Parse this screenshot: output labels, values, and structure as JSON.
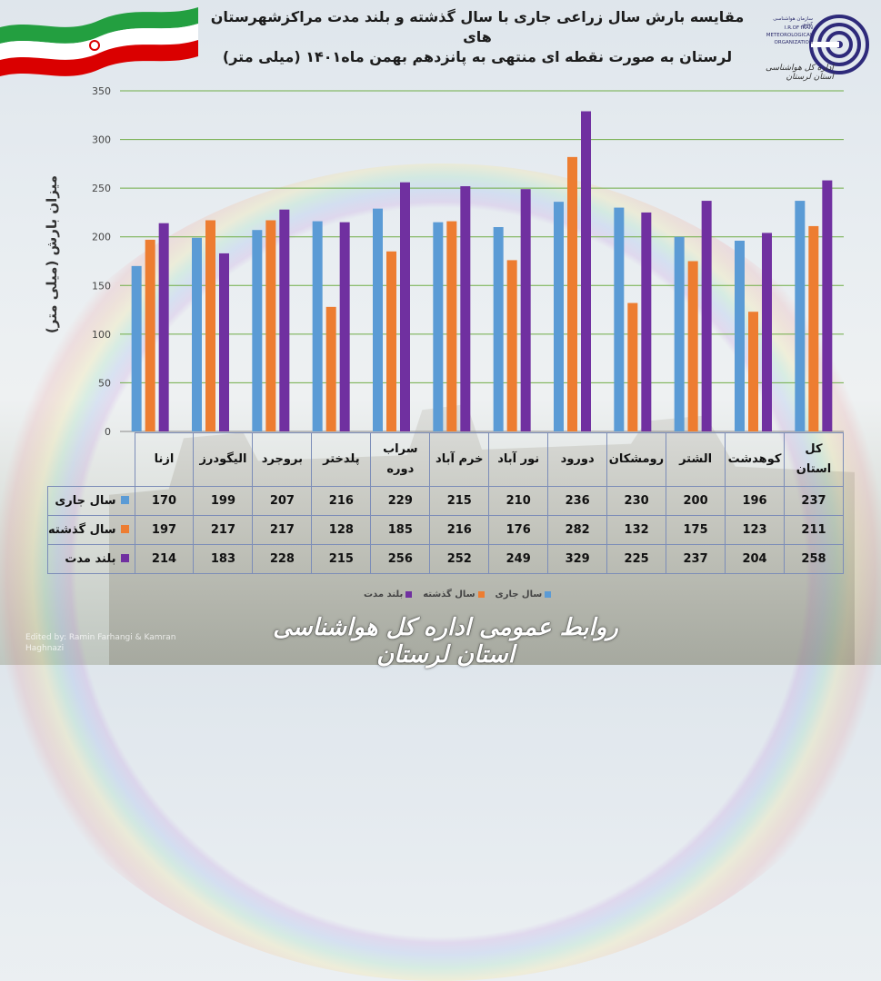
{
  "header": {
    "title_line1": "مقایسه بارش سال زراعی جاری با سال گذشته و بلند مدت مراکزشهرستان های",
    "title_line2": "لرستان به صورت نقطه ای منتهی به پانزدهم بهمن ماه۱۴۰۱ (میلی متر)"
  },
  "logo": {
    "line1": "سازمان هواشناسی کشور",
    "line2": "I.R.OF IRAN",
    "line3": "METEOROLOGICAL",
    "line4": "ORGANIZATION",
    "fa_line1": "اداره کل هواشناسی",
    "fa_line2": "استان لرستان"
  },
  "footer": {
    "text": "روابط عمومی اداره کل هواشناسی استان لرستان",
    "credit": "Edited by: Ramin Farhangi & Kamran Haghnazi"
  },
  "colors": {
    "current": "#5b9bd5",
    "last": "#ed7d31",
    "longterm": "#7030a0",
    "grid": "#70ad47"
  },
  "chart_data": {
    "type": "bar",
    "title": "مقایسه بارش سال زراعی جاری با سال گذشته و بلند مدت مراکزشهرستان های لرستان به صورت نقطه ای منتهی به پانزدهم بهمن ماه۱۴۰۱ (میلی متر)",
    "ylabel": "میزان بارش (میلی متر)",
    "xlabel": "",
    "ylim": [
      0,
      350
    ],
    "yticks": [
      0,
      50,
      100,
      150,
      200,
      250,
      300,
      350
    ],
    "grid": true,
    "legend_position": "bottom",
    "categories": [
      "ازنا",
      "الیگودرز",
      "بروجرد",
      "پلدختر",
      "سراب دوره",
      "خرم آباد",
      "نور آباد",
      "دورود",
      "رومشکان",
      "الشتر",
      "کوهدشت",
      "کل استان"
    ],
    "series": [
      {
        "name": "سال جاری",
        "values": [
          170,
          199,
          207,
          216,
          229,
          215,
          210,
          236,
          230,
          200,
          196,
          237
        ]
      },
      {
        "name": "سال گذشته",
        "values": [
          197,
          217,
          217,
          128,
          185,
          216,
          176,
          282,
          132,
          175,
          123,
          211
        ]
      },
      {
        "name": "بلند مدت",
        "values": [
          214,
          183,
          228,
          215,
          256,
          252,
          249,
          329,
          225,
          237,
          204,
          258
        ]
      }
    ]
  }
}
